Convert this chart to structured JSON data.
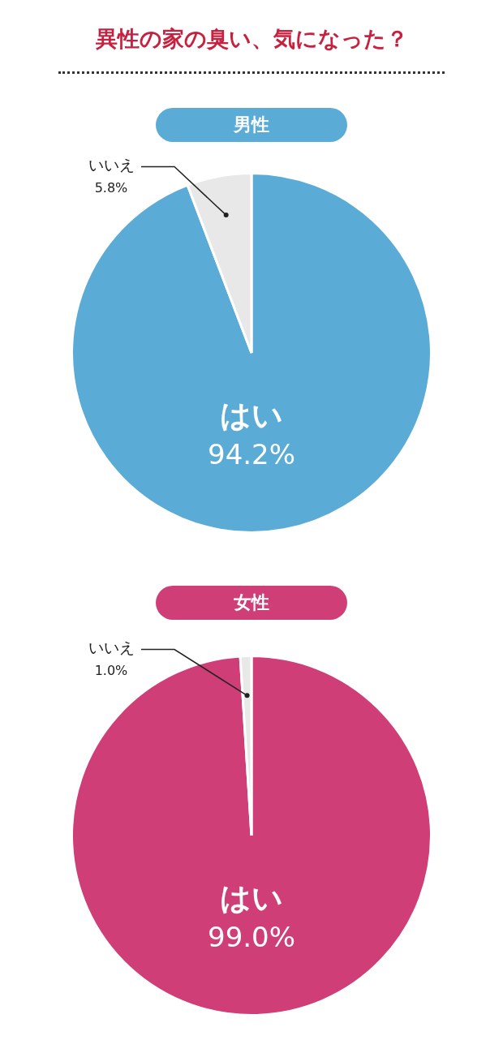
{
  "chart_data": [
    {
      "type": "pie",
      "title": "異性の家の臭い、気になった？",
      "subtitle": "男性",
      "categories": [
        "はい",
        "いいえ"
      ],
      "values": [
        94.2,
        5.8
      ],
      "colors": [
        "#5aabd5",
        "#e8e8e8"
      ],
      "value_labels": [
        "94.2%",
        "5.8%"
      ]
    },
    {
      "type": "pie",
      "subtitle": "女性",
      "categories": [
        "はい",
        "いいえ"
      ],
      "values": [
        99.0,
        1.0
      ],
      "colors": [
        "#cf3e77",
        "#e8e8e8"
      ],
      "value_labels": [
        "99.0%",
        "1.0%"
      ]
    }
  ]
}
